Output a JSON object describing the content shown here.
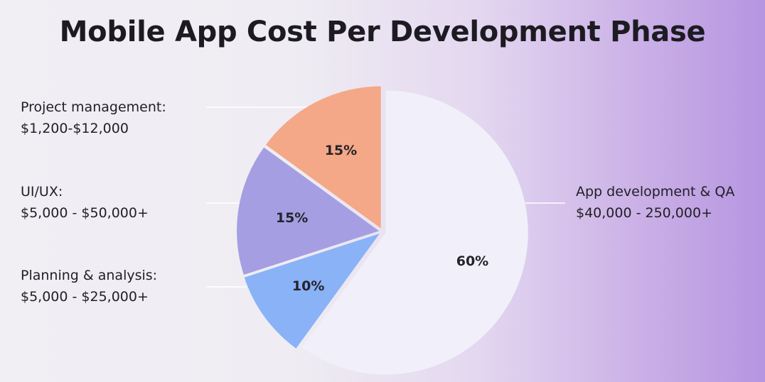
{
  "title": "Mobile App Cost Per Development Phase",
  "chart_data": {
    "type": "pie",
    "title": "Mobile App Cost Per Development Phase",
    "slices": [
      {
        "name": "App development & QA",
        "range": "$40,000 - 250,000+",
        "value": 60,
        "label": "60%",
        "color": "#f1f0fa"
      },
      {
        "name": "Planning & analysis:",
        "range": "$5,000 - $25,000+",
        "value": 10,
        "label": "10%",
        "color": "#89b2f7"
      },
      {
        "name": "UI/UX:",
        "range": "$5,000 - $50,000+",
        "value": 15,
        "label": "15%",
        "color": "#a59ee2"
      },
      {
        "name": "Project management:",
        "range": "$1,200-$12,000",
        "value": 15,
        "label": "15%",
        "color": "#f4a887"
      }
    ],
    "legend": "callout labels"
  }
}
